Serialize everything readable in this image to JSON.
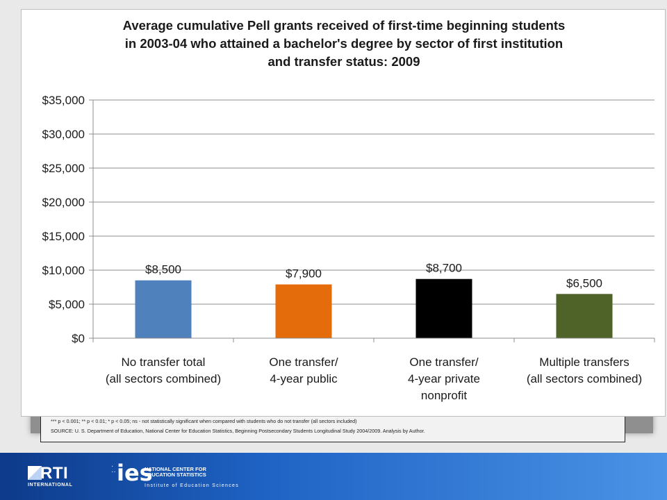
{
  "chart_data": {
    "type": "bar",
    "title_lines": [
      "Average cumulative Pell grants received of first-time beginning students",
      "in 2003-04 who attained a bachelor's degree by sector of first institution",
      "and transfer status: 2009"
    ],
    "categories": [
      [
        "No transfer total",
        "(all sectors combined)"
      ],
      [
        "One transfer/",
        "4-year public"
      ],
      [
        "One transfer/",
        "4-year private",
        "nonprofit"
      ],
      [
        "Multiple transfers",
        "(all sectors combined)"
      ]
    ],
    "values": [
      8500,
      7900,
      8700,
      6500
    ],
    "value_labels": [
      "$8,500",
      "$7,900",
      "$8,700",
      "$6,500"
    ],
    "colors": [
      "#4f81bd",
      "#e46c0a",
      "#000000",
      "#4f6228"
    ],
    "ylim": [
      0,
      35000
    ],
    "yticks": [
      0,
      5000,
      10000,
      15000,
      20000,
      25000,
      30000,
      35000
    ],
    "ytick_labels": [
      "$0",
      "$5,000",
      "$10,000",
      "$15,000",
      "$20,000",
      "$25,000",
      "$30,000",
      "$35,000"
    ],
    "grid": true,
    "legend": "none"
  },
  "footnotes": {
    "significance": "*** p < 0.001; ** p < 0.01; * p < 0.05; ns - not statistically significant when compared with students who do not transfer (all sectors included)",
    "source": "SOURCE: U. S. Department of Education, National Center for Education Statistics, Beginning Postsecondary Students Longitudinal Study 2004/2009.  Analysis by Author."
  },
  "logos": {
    "rti_name": "RTI",
    "rti_sub": "INTERNATIONAL",
    "ies_name": "ies",
    "ies_center": "NATIONAL CENTER FOR EDUCATION STATISTICS",
    "ies_sub": "Institute of Education Sciences"
  }
}
